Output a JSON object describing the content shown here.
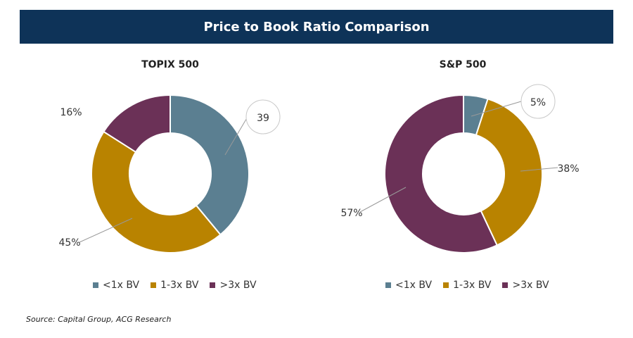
{
  "header": {
    "title": "Price to Book Ratio Comparison"
  },
  "colors": {
    "lt1x": "#5b7f91",
    "x1to3": "#b98300",
    "gt3x": "#6b3157",
    "header_bg": "#0e3358"
  },
  "chart_data": [
    {
      "type": "pie",
      "title": "TOPIX 500",
      "categories": [
        "<1x BV",
        "1-3x BV",
        ">3x BV"
      ],
      "values": [
        39,
        45,
        16
      ],
      "labels": [
        "39",
        "45%",
        "16%"
      ],
      "legend_position": "bottom"
    },
    {
      "type": "pie",
      "title": "S&P 500",
      "categories": [
        "<1x BV",
        "1-3x BV",
        ">3x BV"
      ],
      "values": [
        5,
        38,
        57
      ],
      "labels": [
        "5%",
        "38%",
        "57%"
      ],
      "legend_position": "bottom"
    }
  ],
  "source": "Source: Capital Group, ACG Research"
}
